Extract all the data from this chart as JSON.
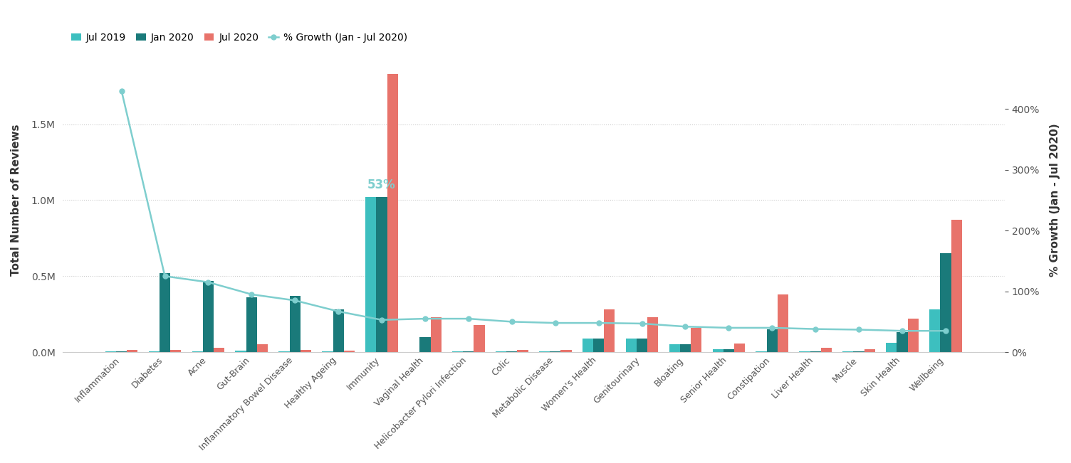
{
  "categories": [
    "Inflammation",
    "Diabetes",
    "Acne",
    "Gut-Brain",
    "Inflammatory Bowel Disease",
    "Healthy Ageing",
    "Immunity",
    "Vaginal Health",
    "Helicobacter Pylori Infection",
    "Colic",
    "Metabolic Disease",
    "Women's Health",
    "Genitourinary",
    "Bloating",
    "Senior Health",
    "Constipation",
    "Liver Health",
    "Muscle",
    "Skin Health",
    "Wellbeing"
  ],
  "jul2019": [
    5000,
    5000,
    5000,
    10000,
    5000,
    5000,
    1020000,
    0,
    5000,
    5000,
    5000,
    90000,
    90000,
    50000,
    20000,
    5000,
    5000,
    5000,
    60000,
    280000
  ],
  "jan2020": [
    5000,
    520000,
    470000,
    360000,
    370000,
    280000,
    1020000,
    100000,
    5000,
    5000,
    5000,
    90000,
    90000,
    50000,
    20000,
    150000,
    5000,
    5000,
    130000,
    650000
  ],
  "jul2020": [
    15000,
    15000,
    30000,
    50000,
    15000,
    10000,
    1830000,
    230000,
    180000,
    15000,
    15000,
    280000,
    230000,
    160000,
    55000,
    380000,
    30000,
    20000,
    220000,
    870000
  ],
  "pct_growth": [
    430,
    125,
    115,
    95,
    85,
    67,
    53,
    55,
    55,
    50,
    48,
    48,
    47,
    42,
    40,
    40,
    38,
    37,
    35,
    35
  ],
  "annotation_index": 6,
  "annotation_text": "53%",
  "jul2019_color": "#3dbfbf",
  "jan2020_color": "#1a7a7a",
  "jul2020_color": "#e8736b",
  "growth_color": "#7ecece",
  "bar_width": 0.25,
  "ylabel_left": "Total Number of Reviews",
  "ylabel_right": "% Growth (Jan - Jul 2020)",
  "ylim_left": [
    0,
    2000000
  ],
  "ylim_right": [
    0,
    500
  ],
  "background_color": "#ffffff",
  "legend_labels": [
    "Jul 2019",
    "Jan 2020",
    "Jul 2020",
    "% Growth (Jan - Jul 2020)"
  ]
}
